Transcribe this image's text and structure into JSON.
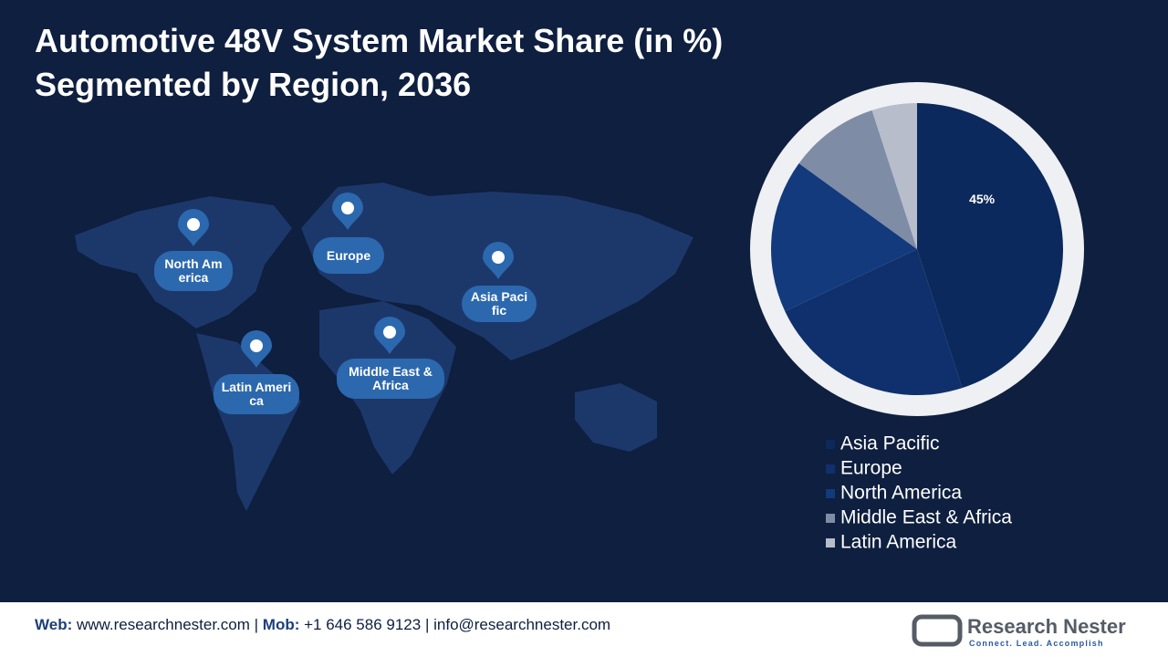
{
  "chart_data": {
    "type": "pie",
    "title": "Automotive 48V System Market Share (in %)",
    "subtitle": "Segmented by Region, 2036",
    "categories": [
      "Asia Pacific",
      "Europe",
      "North America",
      "Middle East & Africa",
      "Latin America"
    ],
    "values": [
      45,
      23,
      17,
      10,
      5
    ],
    "value_labels": [
      "45%",
      null,
      null,
      null,
      null
    ],
    "colors": [
      "#0b295c",
      "#0f306c",
      "#133a7c",
      "#7f8ca6",
      "#b7bdca"
    ],
    "legend": "bottom"
  },
  "map_labels": [
    "North America",
    "Europe",
    "Asia Pacific",
    "Middle East & Africa",
    "Latin America"
  ],
  "footer": {
    "web_label": "Web:",
    "web": "www.researchnester.com",
    "separator": "|",
    "mob_label": "Mob:",
    "mob": "+1 646 586 9123",
    "email": "info@researchnester.com"
  },
  "logo": {
    "name": "Research Nester",
    "tagline": "Connect. Lead. Accomplish"
  }
}
